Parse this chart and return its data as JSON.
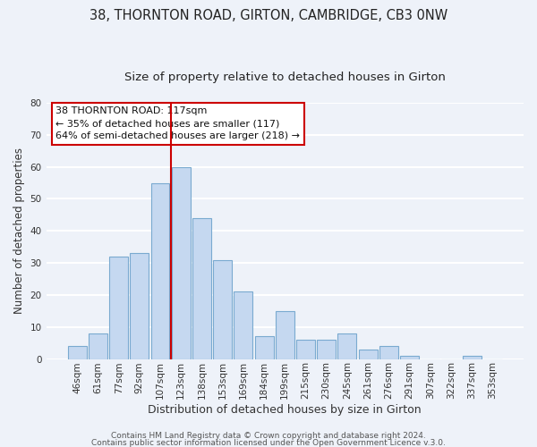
{
  "title1": "38, THORNTON ROAD, GIRTON, CAMBRIDGE, CB3 0NW",
  "title2": "Size of property relative to detached houses in Girton",
  "xlabel": "Distribution of detached houses by size in Girton",
  "ylabel": "Number of detached properties",
  "bar_labels": [
    "46sqm",
    "61sqm",
    "77sqm",
    "92sqm",
    "107sqm",
    "123sqm",
    "138sqm",
    "153sqm",
    "169sqm",
    "184sqm",
    "199sqm",
    "215sqm",
    "230sqm",
    "245sqm",
    "261sqm",
    "276sqm",
    "291sqm",
    "307sqm",
    "322sqm",
    "337sqm",
    "353sqm"
  ],
  "bar_heights": [
    4,
    8,
    32,
    33,
    55,
    60,
    44,
    31,
    21,
    7,
    15,
    6,
    6,
    8,
    3,
    4,
    1,
    0,
    0,
    1,
    0
  ],
  "bar_color": "#c5d8f0",
  "bar_edge_color": "#7aaad0",
  "vline_color": "#cc0000",
  "annotation_title": "38 THORNTON ROAD: 117sqm",
  "annotation_line1": "← 35% of detached houses are smaller (117)",
  "annotation_line2": "64% of semi-detached houses are larger (218) →",
  "annotation_box_color": "#ffffff",
  "annotation_box_edge": "#cc0000",
  "ylim": [
    0,
    80
  ],
  "yticks": [
    0,
    10,
    20,
    30,
    40,
    50,
    60,
    70,
    80
  ],
  "footnote1": "Contains HM Land Registry data © Crown copyright and database right 2024.",
  "footnote2": "Contains public sector information licensed under the Open Government Licence v.3.0.",
  "background_color": "#eef2f9",
  "grid_color": "#ffffff",
  "title1_fontsize": 10.5,
  "title2_fontsize": 9.5,
  "xlabel_fontsize": 9,
  "ylabel_fontsize": 8.5,
  "tick_fontsize": 7.5,
  "annotation_fontsize": 8,
  "footnote_fontsize": 6.5
}
